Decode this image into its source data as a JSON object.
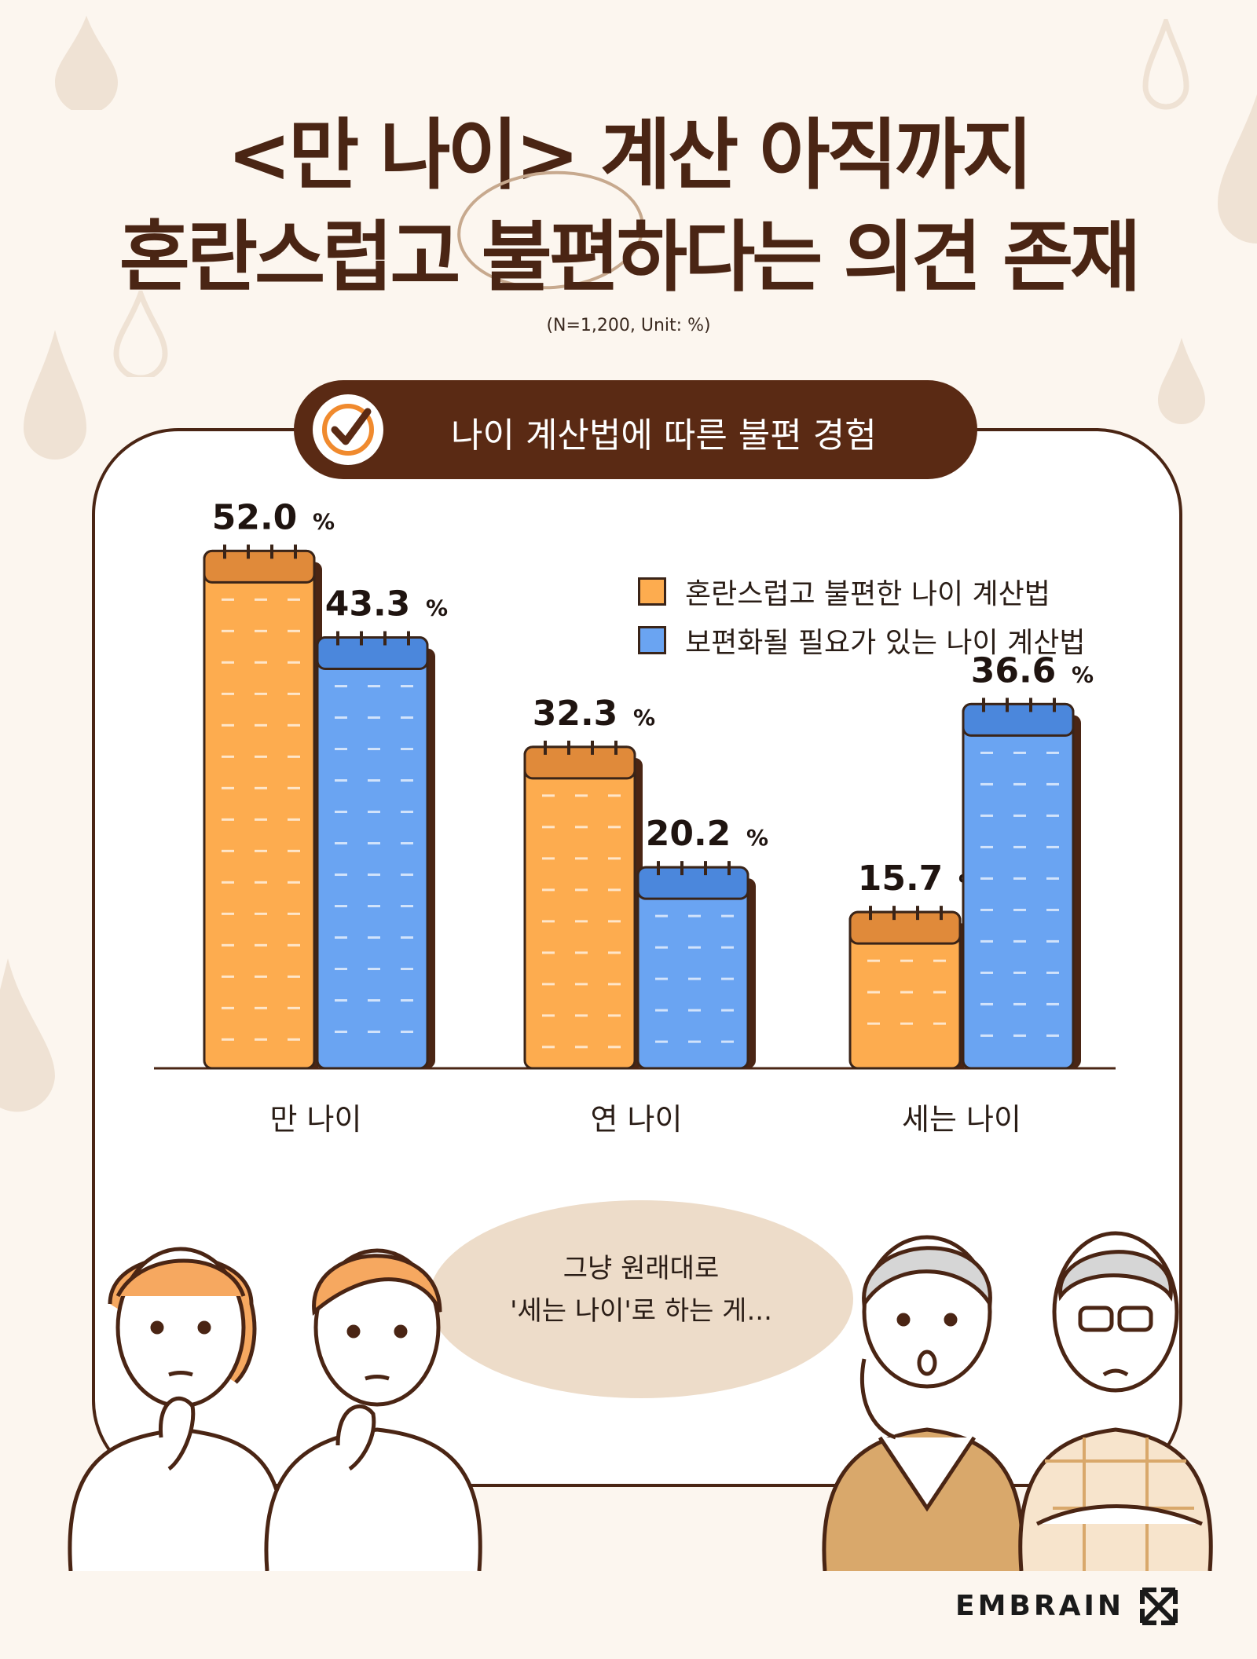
{
  "title": {
    "line1": "<만 나이> 계산 아직까지",
    "line2": "혼란스럽고 불편하다는 의견 존재"
  },
  "sample_note": "(N=1,200, Unit: %)",
  "section_header": "나이 계산법에 따른 불편 경험",
  "chart_data": {
    "type": "bar",
    "categories": [
      "만 나이",
      "연 나이",
      "세는 나이"
    ],
    "series": [
      {
        "name": "혼란스럽고 불편한 나이 계산법",
        "values": [
          52.0,
          32.3,
          15.7
        ],
        "labels": [
          "52.0",
          "32.3",
          "15.7"
        ],
        "color": "#fdac4f"
      },
      {
        "name": "보편화될 필요가 있는 나이 계산법",
        "values": [
          43.3,
          20.2,
          36.6
        ],
        "labels": [
          "43.3",
          "20.2",
          "36.6"
        ],
        "color": "#6aa4f2"
      }
    ],
    "unit": "%",
    "ylim": [
      0,
      60
    ],
    "legend_position": "top-right"
  },
  "bubble": {
    "line1": "그냥 원래대로",
    "line2": "'세는 나이'로 하는 게..."
  },
  "logo": "EMBRAIN",
  "colors": {
    "background": "#fcf6ef",
    "brown": "#5a2a14",
    "orange": "#fdac4f",
    "orange_dark": "#e08a3a",
    "blue": "#6aa4f2",
    "blue_dark": "#4b87dc"
  }
}
